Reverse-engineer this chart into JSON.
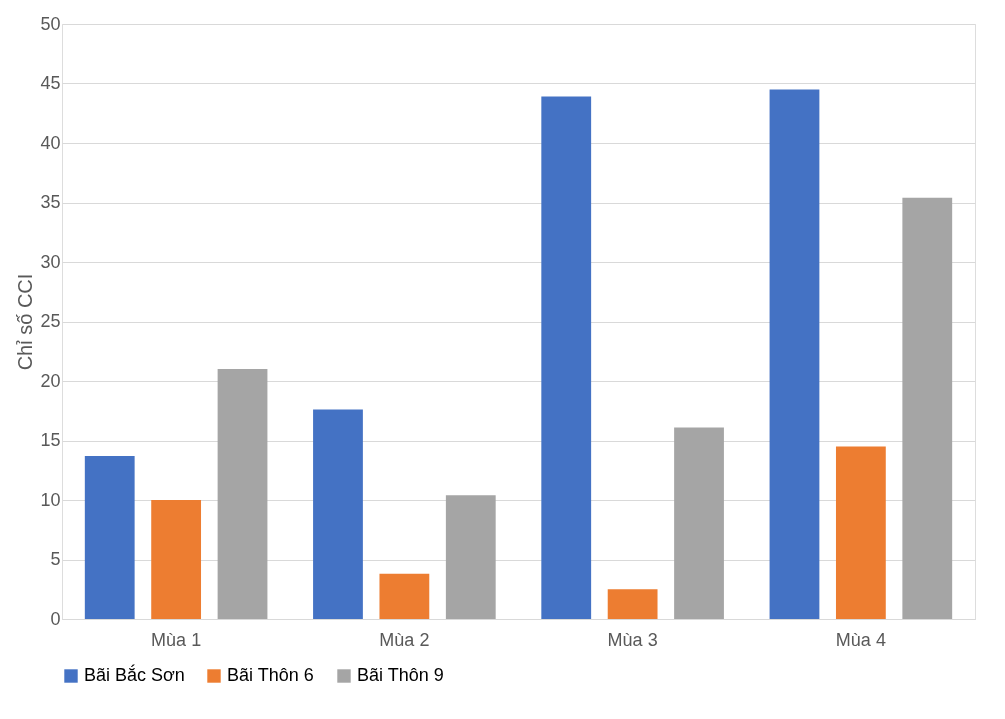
{
  "chart_data": {
    "type": "bar",
    "ylabel": "Chỉ số CCI",
    "categories": [
      "Mùa 1",
      "Mùa 2",
      "Mùa 3",
      "Mùa 4"
    ],
    "series": [
      {
        "name": "Bãi Bắc Sơn",
        "color": "#4472c4",
        "values": [
          13.7,
          17.6,
          43.9,
          44.5
        ]
      },
      {
        "name": "Bãi Thôn 6",
        "color": "#ed7d31",
        "values": [
          10.0,
          3.8,
          2.5,
          14.5
        ]
      },
      {
        "name": "Bãi Thôn 9",
        "color": "#a5a5a5",
        "values": [
          21.0,
          10.4,
          16.1,
          35.4
        ]
      }
    ],
    "ylim": [
      0,
      50
    ],
    "yticks": [
      0,
      5,
      10,
      15,
      20,
      25,
      30,
      35,
      40,
      45,
      50
    ],
    "grid": "y",
    "legend": "bottom"
  }
}
